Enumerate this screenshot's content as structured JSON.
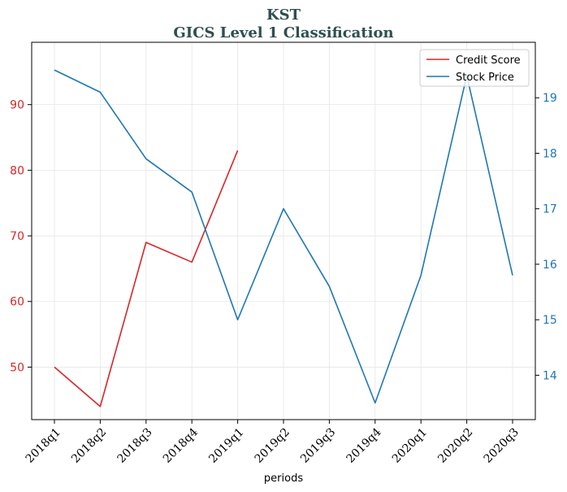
{
  "chart_data": {
    "type": "line",
    "title_line1": "KST",
    "title_line2": "GICS Level 1 Classification",
    "xlabel": "periods",
    "categories": [
      "2018q1",
      "2018q2",
      "2018q3",
      "2018q4",
      "2019q1",
      "2019q2",
      "2019q3",
      "2019q4",
      "2020q1",
      "2020q2",
      "2020q3"
    ],
    "y_left": {
      "ylim": [
        42,
        99.5
      ],
      "ticks": [
        50,
        60,
        70,
        80,
        90
      ],
      "color": "#d62728"
    },
    "y_right": {
      "ylim": [
        13.2,
        20.0
      ],
      "ticks": [
        14,
        15,
        16,
        17,
        18,
        19
      ],
      "color": "#1f77b4"
    },
    "grid": true,
    "legend_position": "top-right",
    "series": [
      {
        "name": "Credit Score",
        "axis": "left",
        "color": "#d62728",
        "values": [
          50,
          44,
          69,
          66,
          83,
          null,
          null,
          null,
          null,
          null,
          null
        ]
      },
      {
        "name": "Stock Price",
        "axis": "right",
        "color": "#1f77b4",
        "values": [
          19.5,
          19.1,
          17.9,
          17.3,
          15.0,
          17.0,
          15.6,
          13.5,
          15.8,
          19.4,
          15.8
        ]
      }
    ]
  }
}
